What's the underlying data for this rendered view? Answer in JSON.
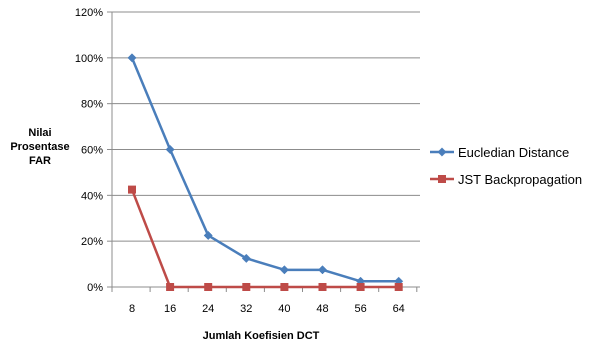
{
  "chart_data": {
    "type": "line",
    "title": "",
    "xlabel": "Jumlah Koefisien DCT",
    "ylabel_lines": [
      "Nilai",
      "Prosentase",
      "FAR"
    ],
    "categories": [
      "8",
      "16",
      "24",
      "32",
      "40",
      "48",
      "56",
      "64"
    ],
    "y_ticks": [
      "0%",
      "20%",
      "40%",
      "60%",
      "80%",
      "100%",
      "120%"
    ],
    "ylim": [
      0,
      120
    ],
    "y_unit": "%",
    "grid": "horizontal",
    "legend_position": "right",
    "series": [
      {
        "name": "Eucledian Distance",
        "marker": "diamond",
        "color": "#4a7ebb",
        "values": [
          100,
          60,
          22.5,
          12.5,
          7.5,
          7.5,
          2.5,
          2.5
        ]
      },
      {
        "name": "JST Backpropagation",
        "marker": "square",
        "color": "#be4b48",
        "values": [
          42.5,
          0,
          0,
          0,
          0,
          0,
          0,
          0
        ]
      }
    ]
  }
}
